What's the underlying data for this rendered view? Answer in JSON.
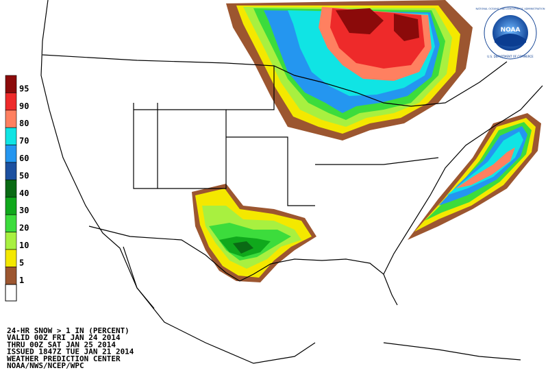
{
  "legend": {
    "items": [
      {
        "label": "95",
        "color": "#8b0a0a"
      },
      {
        "label": "90",
        "color": "#ee2a2a"
      },
      {
        "label": "80",
        "color": "#ff8060"
      },
      {
        "label": "70",
        "color": "#10e4e4"
      },
      {
        "label": "60",
        "color": "#2496f0"
      },
      {
        "label": "50",
        "color": "#1c50a0"
      },
      {
        "label": "40",
        "color": "#0a6a14"
      },
      {
        "label": "30",
        "color": "#10a81c"
      },
      {
        "label": "20",
        "color": "#3cdc3c"
      },
      {
        "label": "10",
        "color": "#a8f040"
      },
      {
        "label": "5",
        "color": "#f4e800"
      },
      {
        "label": "1",
        "color": "#9c5630"
      }
    ]
  },
  "caption": {
    "lines": [
      "24-HR SNOW > 1 IN (PERCENT)",
      "VALID 00Z FRI JAN 24 2014",
      "THRU 00Z SAT JAN 25 2014",
      "ISSUED 1847Z TUE JAN 21 2014",
      "WEATHER PREDICTION CENTER",
      "NOAA/NWS/NCEP/WPC"
    ]
  },
  "logo": {
    "name": "NOAA",
    "ring_top": "NATIONAL OCEANIC AND ATMOSPHERIC ADMINISTRATION",
    "ring_bottom": "U.S. DEPARTMENT OF COMMERCE"
  }
}
